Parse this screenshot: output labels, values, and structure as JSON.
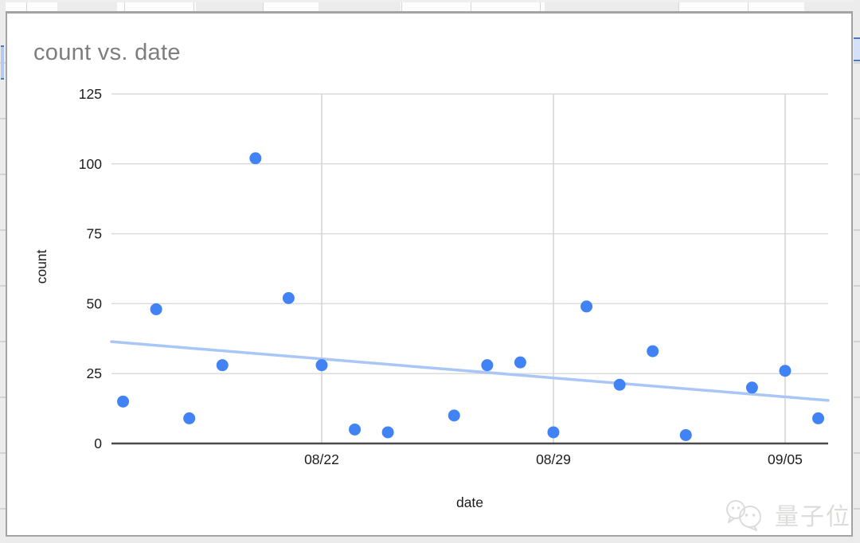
{
  "chart_data": {
    "type": "scatter",
    "title": "count vs. date",
    "xlabel": "date",
    "ylabel": "count",
    "ylim": [
      0,
      125
    ],
    "y_ticks": [
      0,
      25,
      50,
      75,
      100,
      125
    ],
    "x_ticks": [
      "08/22",
      "08/29",
      "09/05"
    ],
    "x_range_days_relative_to_08_22": [
      -6.35,
      15.3
    ],
    "grid": true,
    "legend": "none",
    "points": [
      {
        "date": "08/16",
        "count": 15
      },
      {
        "date": "08/17",
        "count": 48
      },
      {
        "date": "08/18",
        "count": 9
      },
      {
        "date": "08/19",
        "count": 28
      },
      {
        "date": "08/20",
        "count": 102
      },
      {
        "date": "08/21",
        "count": 52
      },
      {
        "date": "08/22",
        "count": 28
      },
      {
        "date": "08/23",
        "count": 5
      },
      {
        "date": "08/24",
        "count": 4
      },
      {
        "date": "08/26",
        "count": 10
      },
      {
        "date": "08/27",
        "count": 28
      },
      {
        "date": "08/28",
        "count": 29
      },
      {
        "date": "08/29",
        "count": 4
      },
      {
        "date": "08/30",
        "count": 49
      },
      {
        "date": "08/31",
        "count": 21
      },
      {
        "date": "09/01",
        "count": 33
      },
      {
        "date": "09/02",
        "count": 3
      },
      {
        "date": "09/04",
        "count": 20
      },
      {
        "date": "09/05",
        "count": 26
      },
      {
        "date": "09/06",
        "count": 9
      }
    ],
    "trendline": {
      "start_day_rel_08_22": -6.35,
      "start_value": 36.4,
      "end_day_rel_08_22": 15.3,
      "end_value": 15.4
    },
    "colors": {
      "point": "#4183f4",
      "trendline": "#a9c6f7",
      "gridline_h": "#dcdcdc",
      "gridline_v": "#d3d3d3",
      "axis_line": "#4a4a4a",
      "tick_text": "#1c1c1c",
      "title_text": "#7e7d7d"
    }
  },
  "watermark": {
    "text": "量子位",
    "icon": "chat-bubbles-logo-icon"
  }
}
